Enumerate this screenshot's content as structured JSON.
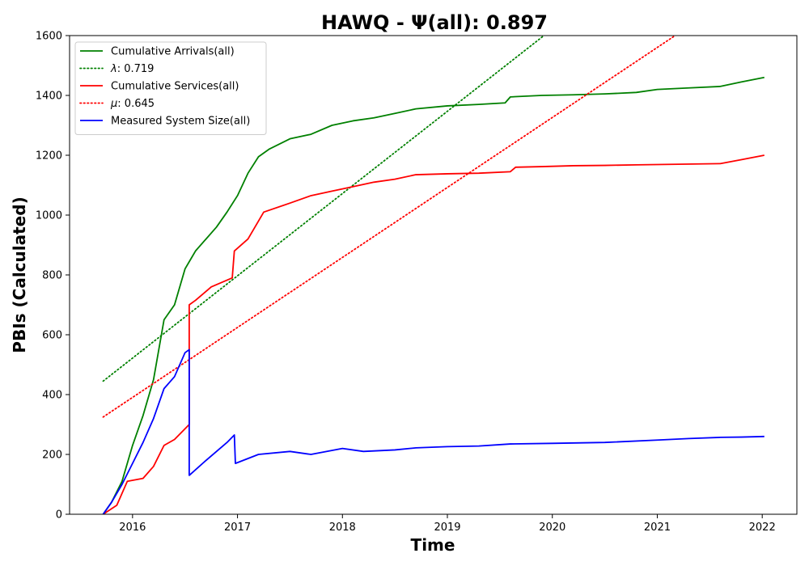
{
  "chart_data": {
    "type": "line",
    "title": "HAWQ -  Ψ(all): 0.897",
    "xlabel": "Time",
    "ylabel": "PBIs (Calculated)",
    "xlim": [
      2015.4,
      2022.33
    ],
    "ylim": [
      0,
      1600
    ],
    "xticks": [
      2016,
      2017,
      2018,
      2019,
      2020,
      2021,
      2022
    ],
    "xtick_labels": [
      "2016",
      "2017",
      "2018",
      "2019",
      "2020",
      "2021",
      "2022"
    ],
    "yticks": [
      0,
      200,
      400,
      600,
      800,
      1000,
      1200,
      1400,
      1600
    ],
    "ytick_labels": [
      "0",
      "200",
      "400",
      "600",
      "800",
      "1000",
      "1200",
      "1400",
      "1600"
    ],
    "grid": false,
    "legend_position": "top-left",
    "legend": [
      {
        "label": "Cumulative Arrivals(all)",
        "color": "#008000",
        "style": "solid"
      },
      {
        "label_prefix": "λ",
        "label_suffix": ": 0.719",
        "color": "#008000",
        "style": "dotted"
      },
      {
        "label": "Cumulative Services(all)",
        "color": "#ff0000",
        "style": "solid"
      },
      {
        "label_prefix": "μ",
        "label_suffix": ": 0.645",
        "color": "#ff0000",
        "style": "dotted"
      },
      {
        "label": "Measured System Size(all)",
        "color": "#0000ff",
        "style": "solid"
      }
    ],
    "series": [
      {
        "name": "Cumulative Arrivals(all)",
        "color": "#008000",
        "style": "solid",
        "points": [
          [
            2015.72,
            0
          ],
          [
            2015.8,
            40
          ],
          [
            2015.9,
            110
          ],
          [
            2016.0,
            230
          ],
          [
            2016.1,
            330
          ],
          [
            2016.2,
            450
          ],
          [
            2016.3,
            650
          ],
          [
            2016.4,
            700
          ],
          [
            2016.5,
            820
          ],
          [
            2016.55,
            850
          ],
          [
            2016.6,
            880
          ],
          [
            2016.7,
            920
          ],
          [
            2016.8,
            960
          ],
          [
            2016.9,
            1010
          ],
          [
            2017.0,
            1065
          ],
          [
            2017.1,
            1140
          ],
          [
            2017.2,
            1195
          ],
          [
            2017.3,
            1220
          ],
          [
            2017.5,
            1255
          ],
          [
            2017.7,
            1270
          ],
          [
            2017.9,
            1300
          ],
          [
            2018.1,
            1315
          ],
          [
            2018.3,
            1325
          ],
          [
            2018.5,
            1340
          ],
          [
            2018.7,
            1355
          ],
          [
            2019.0,
            1365
          ],
          [
            2019.3,
            1370
          ],
          [
            2019.55,
            1375
          ],
          [
            2019.6,
            1395
          ],
          [
            2019.9,
            1400
          ],
          [
            2020.2,
            1402
          ],
          [
            2020.5,
            1405
          ],
          [
            2020.8,
            1410
          ],
          [
            2021.0,
            1420
          ],
          [
            2021.3,
            1425
          ],
          [
            2021.6,
            1430
          ],
          [
            2021.8,
            1445
          ],
          [
            2022.02,
            1460
          ]
        ]
      },
      {
        "name": "λ: 0.719",
        "color": "#008000",
        "style": "dotted",
        "points": [
          [
            2015.72,
            445
          ],
          [
            2019.92,
            1600
          ]
        ]
      },
      {
        "name": "Cumulative Services(all)",
        "color": "#ff0000",
        "style": "solid",
        "points": [
          [
            2015.72,
            0
          ],
          [
            2015.85,
            30
          ],
          [
            2015.95,
            110
          ],
          [
            2016.1,
            120
          ],
          [
            2016.2,
            160
          ],
          [
            2016.3,
            230
          ],
          [
            2016.4,
            250
          ],
          [
            2016.54,
            300
          ],
          [
            2016.54,
            700
          ],
          [
            2016.6,
            715
          ],
          [
            2016.75,
            760
          ],
          [
            2016.95,
            790
          ],
          [
            2016.97,
            880
          ],
          [
            2017.1,
            920
          ],
          [
            2017.25,
            1010
          ],
          [
            2017.5,
            1040
          ],
          [
            2017.7,
            1065
          ],
          [
            2017.9,
            1080
          ],
          [
            2018.1,
            1095
          ],
          [
            2018.3,
            1110
          ],
          [
            2018.5,
            1120
          ],
          [
            2018.7,
            1135
          ],
          [
            2019.0,
            1138
          ],
          [
            2019.3,
            1140
          ],
          [
            2019.6,
            1145
          ],
          [
            2019.65,
            1160
          ],
          [
            2019.9,
            1162
          ],
          [
            2020.2,
            1165
          ],
          [
            2020.5,
            1166
          ],
          [
            2020.8,
            1168
          ],
          [
            2021.2,
            1170
          ],
          [
            2021.6,
            1172
          ],
          [
            2021.8,
            1185
          ],
          [
            2022.02,
            1200
          ]
        ]
      },
      {
        "name": "μ: 0.645",
        "color": "#ff0000",
        "style": "dotted",
        "points": [
          [
            2015.72,
            325
          ],
          [
            2021.17,
            1600
          ]
        ]
      },
      {
        "name": "Measured System Size(all)",
        "color": "#0000ff",
        "style": "solid",
        "points": [
          [
            2015.72,
            0
          ],
          [
            2015.8,
            40
          ],
          [
            2015.9,
            100
          ],
          [
            2016.0,
            170
          ],
          [
            2016.1,
            240
          ],
          [
            2016.2,
            320
          ],
          [
            2016.3,
            420
          ],
          [
            2016.4,
            460
          ],
          [
            2016.5,
            540
          ],
          [
            2016.54,
            550
          ],
          [
            2016.54,
            130
          ],
          [
            2016.7,
            180
          ],
          [
            2016.9,
            240
          ],
          [
            2016.97,
            265
          ],
          [
            2016.98,
            170
          ],
          [
            2017.2,
            200
          ],
          [
            2017.5,
            210
          ],
          [
            2017.7,
            200
          ],
          [
            2018.0,
            220
          ],
          [
            2018.2,
            210
          ],
          [
            2018.5,
            215
          ],
          [
            2018.7,
            222
          ],
          [
            2019.0,
            226
          ],
          [
            2019.3,
            228
          ],
          [
            2019.6,
            235
          ],
          [
            2020.0,
            237
          ],
          [
            2020.5,
            240
          ],
          [
            2021.0,
            248
          ],
          [
            2021.3,
            253
          ],
          [
            2021.6,
            257
          ],
          [
            2021.8,
            258
          ],
          [
            2022.02,
            260
          ]
        ]
      }
    ]
  }
}
